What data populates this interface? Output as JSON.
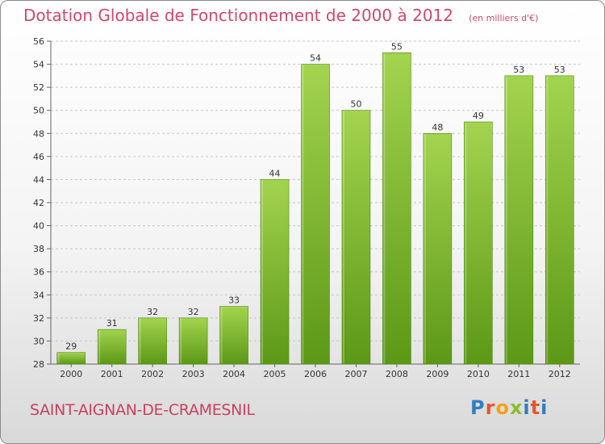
{
  "header": {
    "title": "Dotation Globale de Fonctionnement de 2000 à 2012",
    "subtitle": "(en milliers d'€)"
  },
  "footer": {
    "commune": "SAINT-AIGNAN-DE-CRAMESNIL",
    "logo_text": "Proxiti"
  },
  "colors": {
    "title": "#d0486c",
    "bar_light": "#9fd14a",
    "bar_dark": "#5f9a17",
    "grid": "#c8c8c8"
  },
  "chart_data": {
    "type": "bar",
    "title": "Dotation Globale de Fonctionnement de 2000 à 2012",
    "subtitle": "(en milliers d'€)",
    "xlabel": "",
    "ylabel": "",
    "categories": [
      "2000",
      "2001",
      "2002",
      "2003",
      "2004",
      "2005",
      "2006",
      "2007",
      "2008",
      "2009",
      "2010",
      "2011",
      "2012"
    ],
    "values": [
      29,
      31,
      32,
      32,
      33,
      44,
      54,
      50,
      55,
      48,
      49,
      53,
      53
    ],
    "ylim": [
      28,
      56
    ],
    "yticks": [
      "28",
      "30",
      "32",
      "34",
      "36",
      "38",
      "40",
      "42",
      "44",
      "46",
      "48",
      "50",
      "52",
      "54",
      "56"
    ],
    "grid": true,
    "show_value_labels": true
  }
}
